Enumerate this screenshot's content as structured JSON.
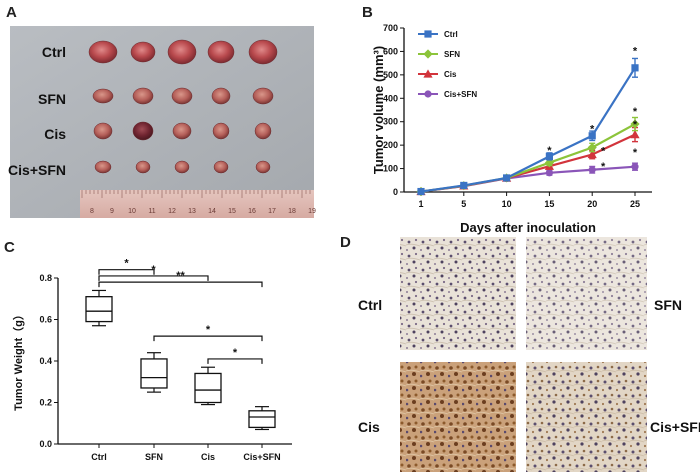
{
  "panels": {
    "a_letter": "A",
    "b_letter": "B",
    "c_letter": "C",
    "d_letter": "D"
  },
  "photo": {
    "row_labels": [
      "Ctrl",
      "SFN",
      "Cis",
      "Cis+SFN"
    ],
    "ruler_numbers": [
      "8",
      "9",
      "10",
      "11",
      "12",
      "13",
      "14",
      "15",
      "16",
      "17",
      "18",
      "19"
    ]
  },
  "chart_data": [
    {
      "type": "line",
      "panel": "B",
      "title": "",
      "xlabel": "Days after inoculation",
      "ylabel": "Tumor volume (mm³)",
      "x": [
        1,
        5,
        10,
        15,
        20,
        25
      ],
      "x_tick_labels": [
        "1",
        "5",
        "10",
        "15",
        "20",
        "25"
      ],
      "ylim": [
        0,
        700
      ],
      "y_ticks": [
        0,
        100,
        200,
        300,
        400,
        500,
        600,
        700
      ],
      "legend_position": "top-left",
      "series": [
        {
          "name": "Ctrl",
          "color": "#3a73c4",
          "marker": "square",
          "values": [
            2,
            28,
            60,
            152,
            240,
            530
          ],
          "errors": [
            2,
            5,
            8,
            15,
            20,
            40
          ]
        },
        {
          "name": "SFN",
          "color": "#8cc43a",
          "marker": "diamond",
          "values": [
            2,
            27,
            60,
            125,
            190,
            290
          ],
          "errors": [
            2,
            5,
            8,
            12,
            18,
            28
          ]
        },
        {
          "name": "Cis",
          "color": "#d2343c",
          "marker": "triangle",
          "values": [
            2,
            26,
            59,
            110,
            160,
            245
          ],
          "errors": [
            2,
            5,
            7,
            12,
            18,
            30
          ]
        },
        {
          "name": "Cis+SFN",
          "color": "#8a55b8",
          "marker": "circle",
          "values": [
            2,
            25,
            58,
            82,
            95,
            108
          ],
          "errors": [
            2,
            4,
            6,
            10,
            14,
            15
          ]
        }
      ],
      "significance": [
        {
          "x": 15,
          "y": 180,
          "label": "*"
        },
        {
          "x": 20,
          "y": 272,
          "label": "*"
        },
        {
          "x": 20,
          "y": 178,
          "label": "*"
        },
        {
          "x": 20,
          "y": 112,
          "label": "*"
        },
        {
          "x": 25,
          "y": 605,
          "label": "*"
        },
        {
          "x": 25,
          "y": 345,
          "label": "*"
        },
        {
          "x": 25,
          "y": 290,
          "label": "*"
        },
        {
          "x": 25,
          "y": 170,
          "label": "*"
        }
      ]
    },
    {
      "type": "box",
      "panel": "C",
      "title": "",
      "xlabel": "",
      "ylabel": "Tumor Weight（g）",
      "categories": [
        "Ctrl",
        "SFN",
        "Cis",
        "Cis+SFN"
      ],
      "ylim": [
        0.0,
        0.8
      ],
      "y_ticks": [
        0.0,
        0.2,
        0.4,
        0.6,
        0.8
      ],
      "y_tick_labels": [
        "0.0",
        "0.2",
        "0.4",
        "0.6",
        "0.8"
      ],
      "boxes": [
        {
          "min": 0.57,
          "q1": 0.59,
          "median": 0.64,
          "q3": 0.71,
          "max": 0.74
        },
        {
          "min": 0.25,
          "q1": 0.27,
          "median": 0.32,
          "q3": 0.41,
          "max": 0.44
        },
        {
          "min": 0.19,
          "q1": 0.2,
          "median": 0.26,
          "q3": 0.34,
          "max": 0.37
        },
        {
          "min": 0.07,
          "q1": 0.08,
          "median": 0.13,
          "q3": 0.16,
          "max": 0.18
        }
      ],
      "brackets": [
        {
          "from": 0,
          "to": 1,
          "y": 0.84,
          "label": "*"
        },
        {
          "from": 0,
          "to": 2,
          "y": 0.81,
          "label": "*"
        },
        {
          "from": 0,
          "to": 3,
          "y": 0.78,
          "label": "**"
        },
        {
          "from": 1,
          "to": 3,
          "y": 0.52,
          "label": "*"
        },
        {
          "from": 2,
          "to": 3,
          "y": 0.41,
          "label": "*"
        }
      ]
    }
  ],
  "ihc": {
    "labels": [
      "Ctrl",
      "SFN",
      "Cis",
      "Cis+SFN"
    ]
  }
}
